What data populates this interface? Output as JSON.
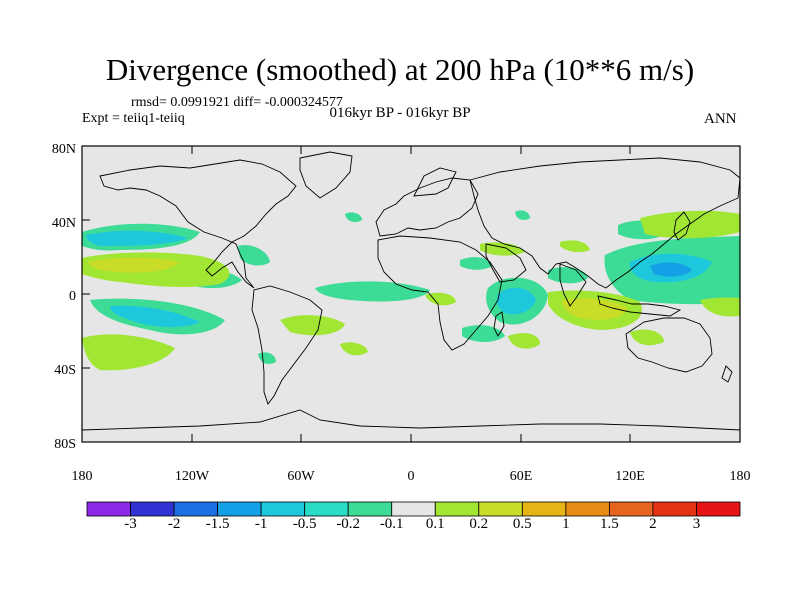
{
  "title": "Divergence (smoothed) at 200 hPa (10**6 m/s)",
  "stats": "rmsd= 0.0991921 diff= -0.000324577",
  "experiment": "Expt = teiiq1-teiiq",
  "period": "016kyr BP - 016kyr BP",
  "season": "ANN",
  "map": {
    "background_color": "#e6e6e6",
    "lat_labels": [
      "80N",
      "40N",
      "0",
      "40S",
      "80S"
    ],
    "lon_labels": [
      "180",
      "120W",
      "60W",
      "0",
      "60E",
      "120E",
      "180"
    ]
  },
  "colorbar": {
    "labels": [
      "-3",
      "-2",
      "-1.5",
      "-1",
      "-0.5",
      "-0.2",
      "-0.1",
      "0.1",
      "0.2",
      "0.5",
      "1",
      "1.5",
      "2",
      "3"
    ],
    "colors": [
      "#8c28e6",
      "#3232d2",
      "#1e6ee6",
      "#14a0e6",
      "#1ec8dc",
      "#28dcc8",
      "#3cdc96",
      "#e6e6e6",
      "#a0e632",
      "#c8dc28",
      "#e6b414",
      "#e68c14",
      "#e6641e",
      "#e63214",
      "#e61414"
    ]
  }
}
